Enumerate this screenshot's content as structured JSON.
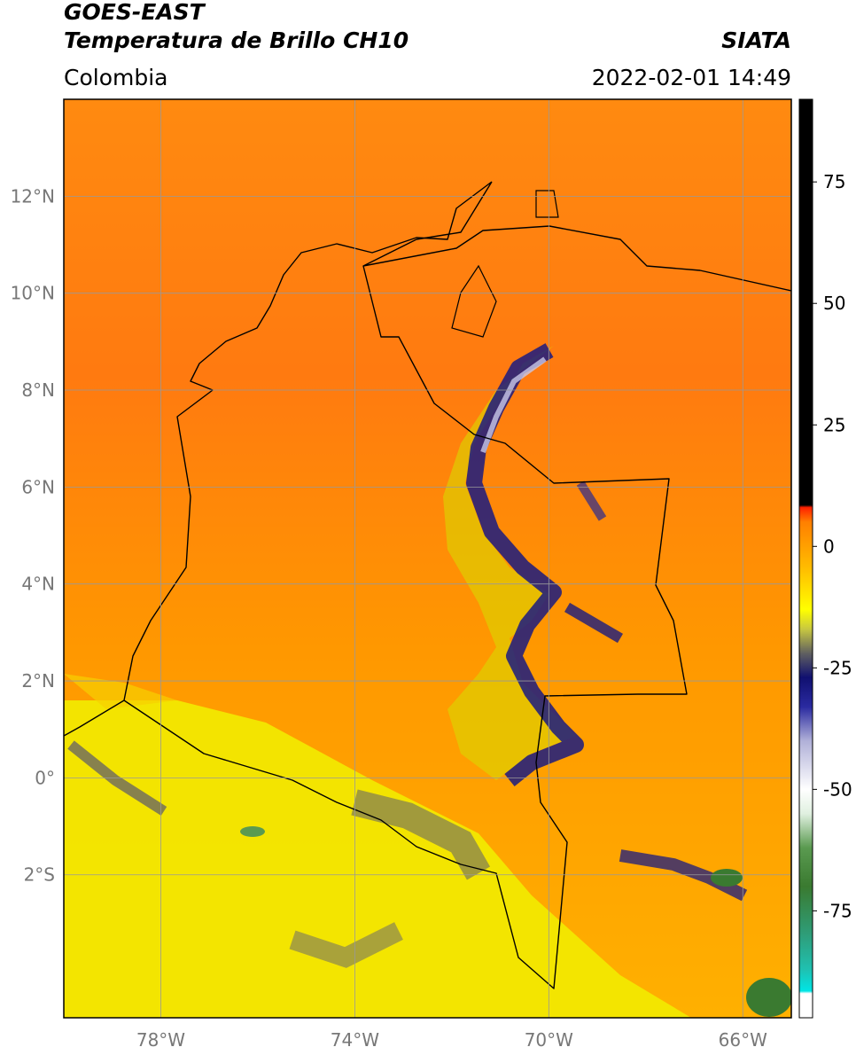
{
  "header": {
    "title": "GOES-EAST",
    "subtitle": "Temperatura de Brillo CH10",
    "source": "SIATA",
    "region": "Colombia",
    "datetime": "2022-02-01 14:49"
  },
  "map": {
    "xlim": [
      -80,
      -65
    ],
    "ylim": [
      -4.95,
      14
    ],
    "xticks": [
      {
        "value": -78,
        "label": "78°W"
      },
      {
        "value": -74,
        "label": "74°W"
      },
      {
        "value": -70,
        "label": "70°W"
      },
      {
        "value": -66,
        "label": "66°W"
      }
    ],
    "yticks": [
      {
        "value": 12,
        "label": "12°N"
      },
      {
        "value": 10,
        "label": "10°N"
      },
      {
        "value": 8,
        "label": "8°N"
      },
      {
        "value": 6,
        "label": "6°N"
      },
      {
        "value": 4,
        "label": "4°N"
      },
      {
        "value": 2,
        "label": "2°N"
      },
      {
        "value": 0,
        "label": "0°"
      },
      {
        "value": -2,
        "label": "2°S"
      }
    ]
  },
  "colorbar": {
    "lim": [
      -97,
      92
    ],
    "ticks": [
      75,
      50,
      25,
      0,
      -25,
      -50,
      -75
    ],
    "stops": [
      {
        "value": -97,
        "color": "#ffffff"
      },
      {
        "value": -92,
        "color": "#ffffff"
      },
      {
        "value": -91.5,
        "color": "#00e5e5"
      },
      {
        "value": -87,
        "color": "#20c0b0"
      },
      {
        "value": -80,
        "color": "#2e9e7a"
      },
      {
        "value": -70,
        "color": "#3a7a30"
      },
      {
        "value": -62,
        "color": "#5a9a50"
      },
      {
        "value": -55,
        "color": "#e0f0e0"
      },
      {
        "value": -50,
        "color": "#ffffff"
      },
      {
        "value": -40,
        "color": "#b0b0d8"
      },
      {
        "value": -33,
        "color": "#2a2aa0"
      },
      {
        "value": -27,
        "color": "#101070"
      },
      {
        "value": -22,
        "color": "#606060"
      },
      {
        "value": -17,
        "color": "#c8c840"
      },
      {
        "value": -13,
        "color": "#ffff00"
      },
      {
        "value": -5,
        "color": "#ffc000"
      },
      {
        "value": 5,
        "color": "#ff8000"
      },
      {
        "value": 8,
        "color": "#ff2000"
      },
      {
        "value": 8.5,
        "color": "#000000"
      },
      {
        "value": 92,
        "color": "#000000"
      }
    ]
  }
}
